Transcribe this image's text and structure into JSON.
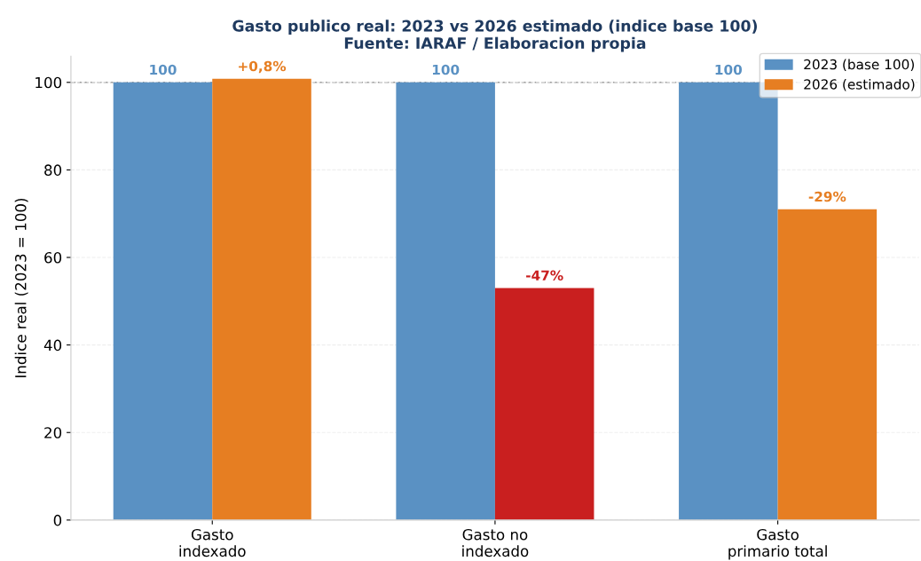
{
  "chart_data": {
    "type": "bar",
    "title": "Gasto publico real: 2023 vs 2026 estimado (indice base 100)\nFuente: IARAF / Elaboracion propia",
    "ylabel": "Indice real (2023 = 100)",
    "categories": [
      "Gasto\nindexado",
      "Gasto no\nindexado",
      "Gasto\nprimario total"
    ],
    "series": [
      {
        "name": "2023 (base 100)",
        "color": "#5a91c3",
        "values": [
          100,
          100,
          100
        ],
        "value_labels": [
          "100",
          "100",
          "100"
        ]
      },
      {
        "name": "2026 (estimado)",
        "color": "#e67e22",
        "colors": [
          "#e67e22",
          "#c91f1f",
          "#e67e22"
        ],
        "values": [
          100.8,
          53,
          71
        ]
      }
    ],
    "annotations": [
      {
        "text": "+0,8%",
        "x": "Gasto\nindexado",
        "y": 100.8
      },
      {
        "text": "-47%",
        "x": "Gasto no\nindexado",
        "y": 53
      },
      {
        "text": "-29%",
        "x": "Gasto\nprimario total",
        "y": 71
      }
    ],
    "ylim": [
      0,
      106
    ],
    "yticks": [
      0,
      20,
      40,
      60,
      80,
      100
    ],
    "grid": "y",
    "legend": "top right",
    "ref_lines": [
      {
        "axis": "y",
        "value": 100,
        "color": "#999999",
        "line_style": "dashed"
      }
    ]
  }
}
